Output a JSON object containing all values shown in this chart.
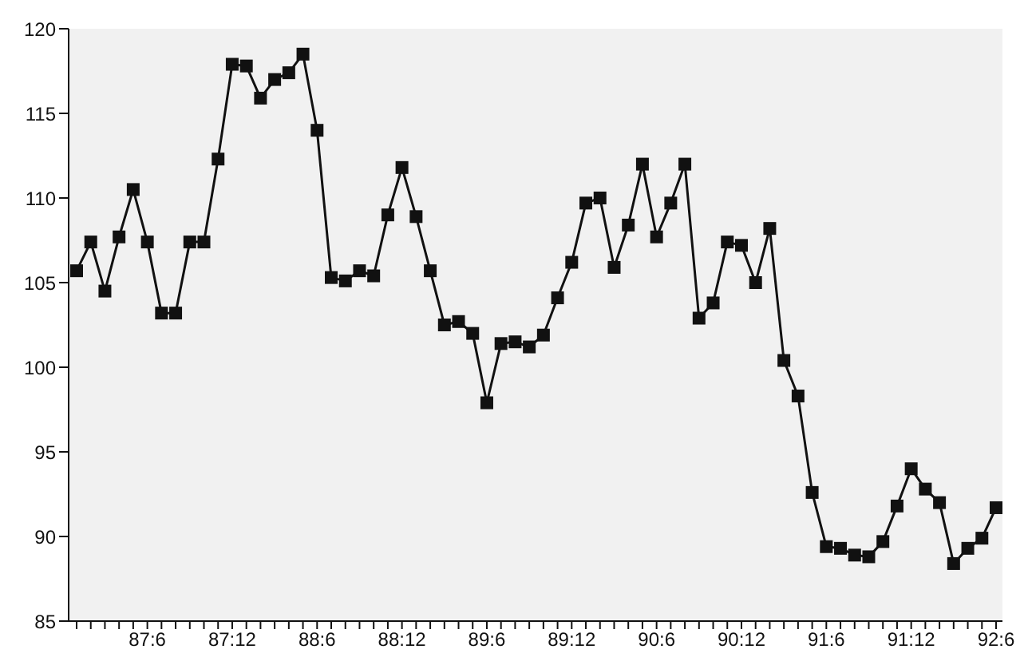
{
  "chart_data": {
    "type": "line",
    "categories": [
      null,
      null,
      null,
      null,
      null,
      "87:6",
      null,
      null,
      null,
      null,
      null,
      "87:12",
      null,
      null,
      null,
      null,
      null,
      "88:6",
      null,
      null,
      null,
      null,
      null,
      "88:12",
      null,
      null,
      null,
      null,
      null,
      "89:6",
      null,
      null,
      null,
      null,
      null,
      "89:12",
      null,
      null,
      null,
      null,
      null,
      "90:6",
      null,
      null,
      null,
      null,
      null,
      "90:12",
      null,
      null,
      null,
      null,
      null,
      "91:6",
      null,
      null,
      null,
      null,
      null,
      "91:12",
      null,
      null,
      null,
      null,
      null,
      "92:6"
    ],
    "series": [
      {
        "color": "#111111",
        "values": [
          105.7,
          107.4,
          104.5,
          107.7,
          110.5,
          107.4,
          103.2,
          103.2,
          107.4,
          107.4,
          112.3,
          117.9,
          117.8,
          115.9,
          117.0,
          117.4,
          118.5,
          114.0,
          105.3,
          105.1,
          105.7,
          105.4,
          109.0,
          111.8,
          108.9,
          105.7,
          102.5,
          102.7,
          102.0,
          97.9,
          101.4,
          101.5,
          101.2,
          101.9,
          104.1,
          106.2,
          109.7,
          110.0,
          105.9,
          108.4,
          112.0,
          107.7,
          109.7,
          112.0,
          102.9,
          103.8,
          107.4,
          107.2,
          105.0,
          108.2,
          100.4,
          98.3,
          92.6,
          89.4,
          89.3,
          88.9,
          88.8,
          89.7,
          91.8,
          94.0,
          92.8,
          92.0,
          88.4,
          89.3,
          89.9,
          91.7
        ]
      }
    ],
    "ylim": [
      85,
      120
    ],
    "yticks": [
      85,
      90,
      95,
      100,
      105,
      110,
      115,
      120
    ],
    "grid": false,
    "legend": false,
    "marker": "square",
    "line_style": "solid"
  }
}
